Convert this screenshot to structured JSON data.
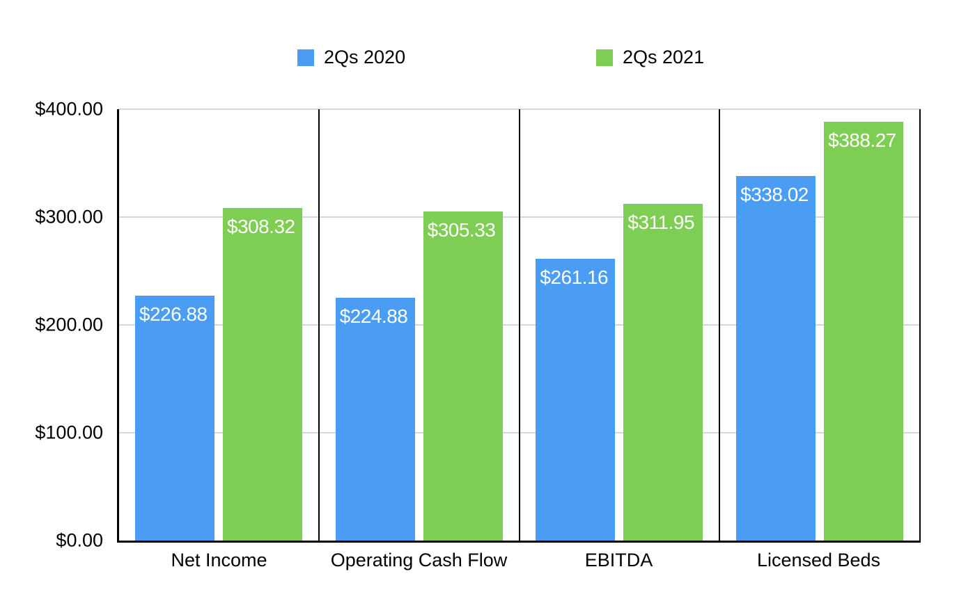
{
  "chart_data": {
    "type": "bar",
    "title": "",
    "categories": [
      "Net Income",
      "Operating Cash Flow",
      "EBITDA",
      "Licensed Beds"
    ],
    "series": [
      {
        "name": "2Qs 2020",
        "color": "#4a9df3",
        "values": [
          226.88,
          224.88,
          261.16,
          338.02
        ],
        "value_labels": [
          "$226.88",
          "$224.88",
          "$261.16",
          "$338.02"
        ]
      },
      {
        "name": "2Qs 2021",
        "color": "#7dce52",
        "values": [
          308.32,
          305.33,
          311.95,
          388.27
        ],
        "value_labels": [
          "$308.32",
          "$305.33",
          "$311.95",
          "$388.27"
        ]
      }
    ],
    "ylim": [
      0,
      400
    ],
    "y_ticks": [
      "$400.00",
      "$300.00",
      "$200.00",
      "$100.00",
      "$0.00"
    ],
    "grid": "horizontal",
    "legend_position": "top",
    "styles": {
      "axis_color": "#000000",
      "gridline_color": "#d6d6d6",
      "bar_label_color": "#ffffff",
      "text_color": "#000000",
      "background": "#ffffff"
    }
  }
}
